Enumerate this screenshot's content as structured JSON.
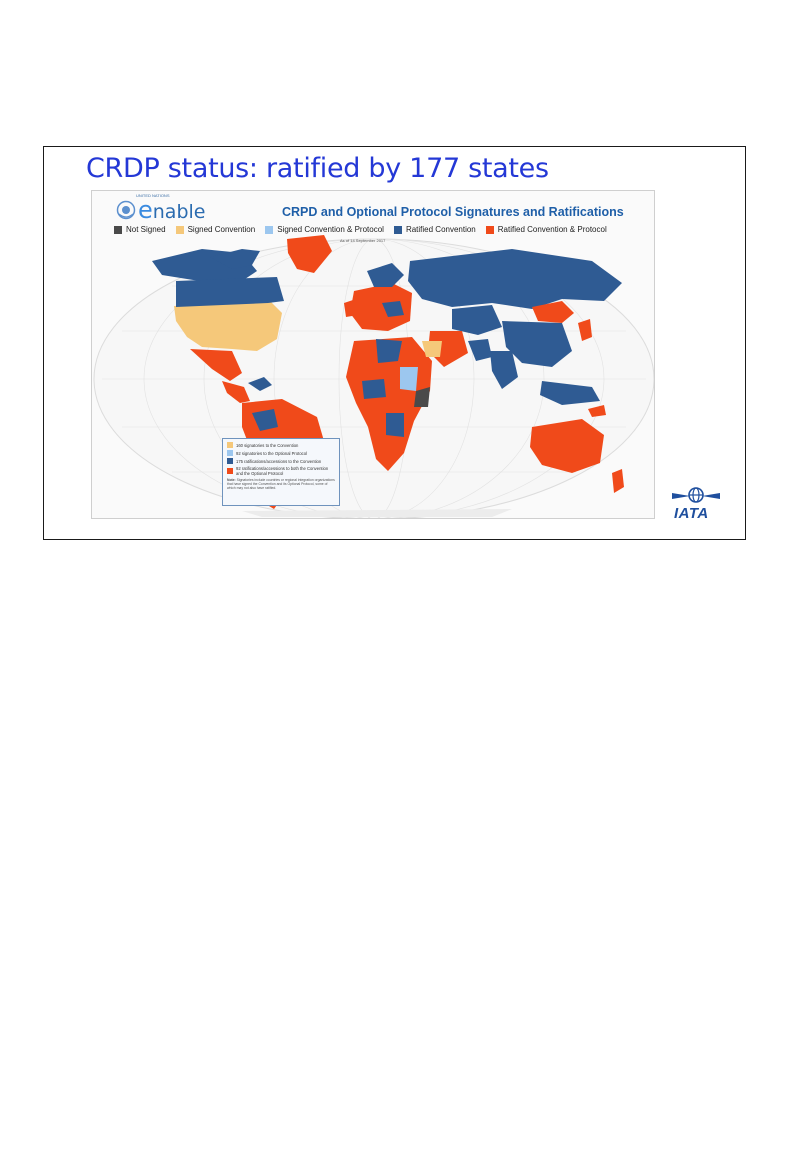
{
  "slide": {
    "title": "CRDP status: ratified by 177 states"
  },
  "map": {
    "logo_word_prefix": "",
    "logo_word_e": "e",
    "logo_word_rest": "nable",
    "logo_org": "UNITED NATIONS",
    "title": "CRPD and Optional Protocol  Signatures and Ratifications",
    "date_line": "As of 14 September 2017",
    "legend": [
      {
        "label": "Not Signed",
        "color": "#4a4a4a"
      },
      {
        "label": "Signed Convention",
        "color": "#f5c87a"
      },
      {
        "label": "Signed Convention & Protocol",
        "color": "#9cc7ef"
      },
      {
        "label": "Ratified Convention",
        "color": "#2f5b93"
      },
      {
        "label": "Ratified Convention & Protocol",
        "color": "#f04a1a"
      }
    ],
    "colors": {
      "ocean": "#fafafa",
      "grid": "#d9d9d9",
      "not_signed": "#4a4a4a",
      "signed": "#f5c87a",
      "signed_protocol": "#9cc7ef",
      "ratified": "#2f5b93",
      "ratified_protocol": "#f04a1a"
    },
    "counts": [
      {
        "text": "160 signatories to the Convention",
        "color": "#f5c87a"
      },
      {
        "text": "92 signatories to the Optional Protocol",
        "color": "#9cc7ef"
      },
      {
        "text": "175 ratifications/accessions to the Convention",
        "color": "#2f5b93"
      },
      {
        "text": "92 ratifications/accessions to both the Convention and the Optional Protocol",
        "color": "#f04a1a"
      }
    ],
    "note_heading": "Note:",
    "note_text": "Signatories include countries or regional integration organizations that have signed the Convention and its Optional Protocol, some of which may not also have ratified."
  },
  "brand": {
    "logo_text": "IATA",
    "logo_icon": "globe-wings-icon",
    "un_icon": "un-emblem-icon"
  }
}
